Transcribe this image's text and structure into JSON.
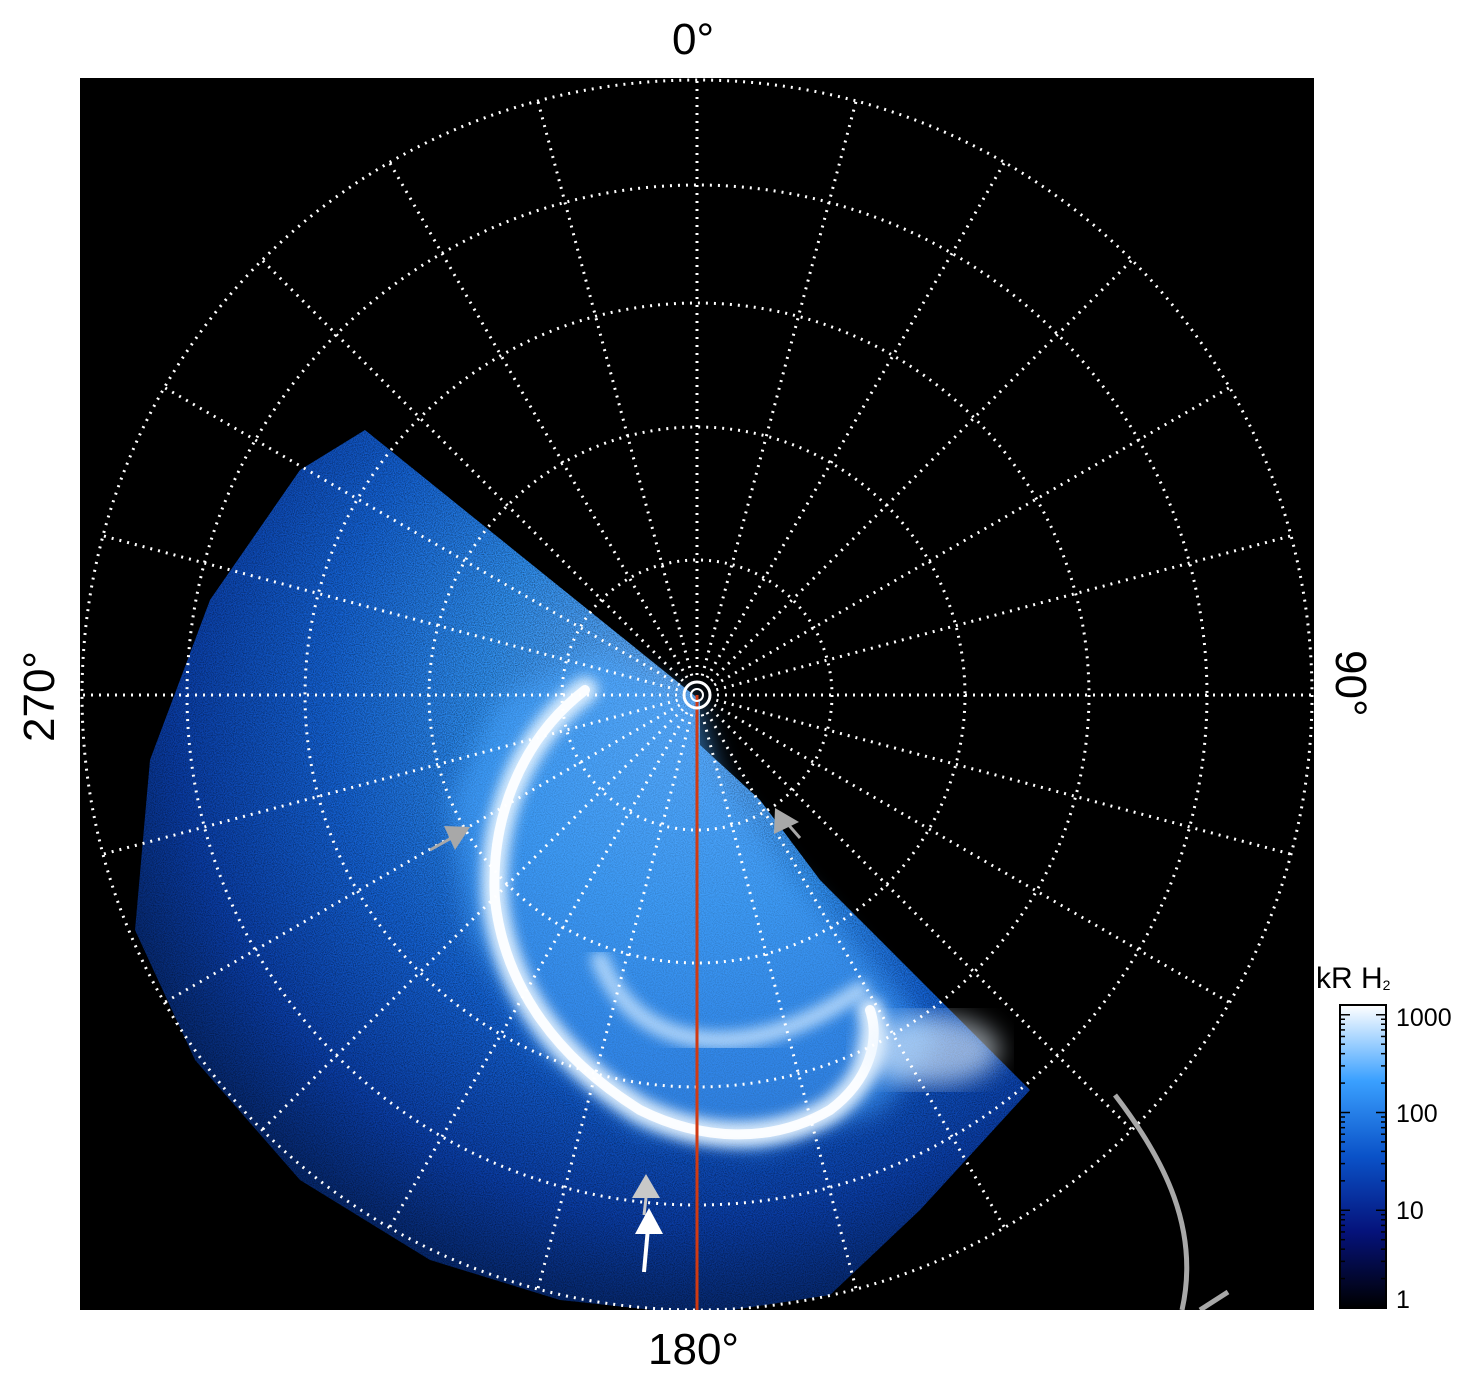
{
  "axes": {
    "top": "0°",
    "right": "90°",
    "bottom": "180°",
    "left": "270°"
  },
  "colorbar": {
    "unit_text": "kR H",
    "unit_sub": "2",
    "ticks": [
      "1000",
      "100",
      "10",
      "1"
    ]
  },
  "colors": {
    "background": "#000000",
    "grid": "#ffffff",
    "meridian": "#d03a12",
    "aurora_dark": "#062a86",
    "aurora_mid": "#1a7de8",
    "aurora_bright": "#e8f4ff",
    "arrow_grey": "#a8a8a8",
    "arrow_white": "#ffffff"
  },
  "icons": {
    "arrows": [
      "grey-arrow-icon",
      "grey-arrow-icon",
      "grey-arrow-icon",
      "white-arrow-icon"
    ]
  }
}
